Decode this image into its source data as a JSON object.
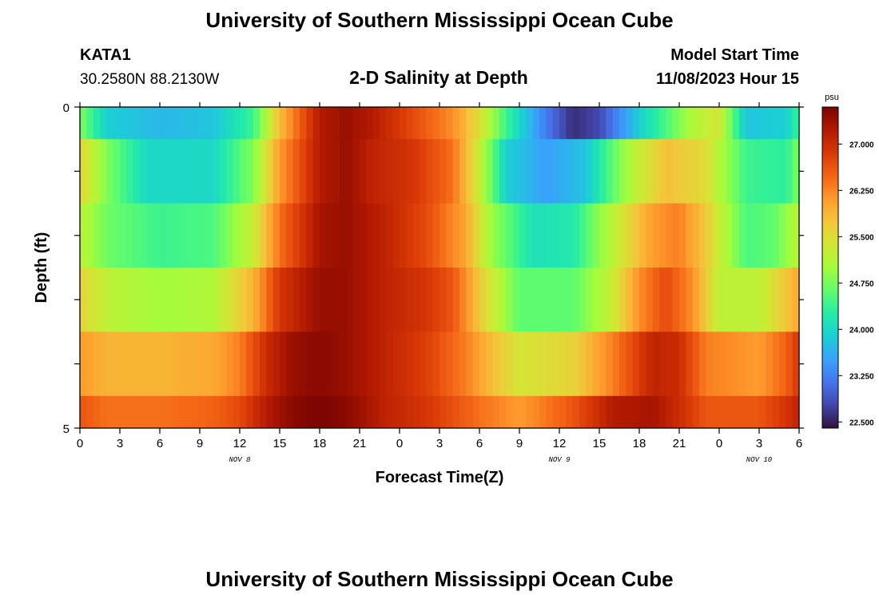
{
  "title": "University of Southern Mississippi Ocean Cube",
  "station": "KATA1",
  "coords": "30.2580N  88.2130W",
  "subtitle": "2-D Salinity at Depth",
  "model_start_label": "Model Start Time",
  "model_start_value": "11/08/2023 Hour 15",
  "footer_title": "University of Southern Mississippi Ocean Cube",
  "chart_data": {
    "type": "heatmap",
    "title": "2-D Salinity at Depth",
    "xlabel": "Forecast Time(Z)",
    "ylabel": "Depth (ft)",
    "x_range": [
      0,
      54
    ],
    "y_range": [
      0,
      5
    ],
    "x_tick_labels": [
      "0",
      "3",
      "6",
      "9",
      "12",
      "15",
      "18",
      "21",
      "0",
      "3",
      "6",
      "9",
      "12",
      "15",
      "18",
      "21",
      "0",
      "3",
      "6"
    ],
    "y_tick_labels": [
      "0",
      "5"
    ],
    "date_labels": [
      {
        "text": "NOV 8",
        "hour": 12
      },
      {
        "text": "NOV 9",
        "hour": 36
      },
      {
        "text": "NOV 10",
        "hour": 51
      }
    ],
    "colorbar": {
      "unit": "psu",
      "min": 22.4,
      "max": 27.6,
      "tick_values": [
        22.5,
        23.25,
        24.0,
        24.75,
        25.5,
        26.25,
        27.0
      ],
      "tick_labels": [
        "22.500",
        "23.250",
        "24.000",
        "24.750",
        "25.500",
        "26.250",
        "27.000"
      ],
      "colors": [
        "#30123b",
        "#4145ab",
        "#4675ed",
        "#39a2fc",
        "#1bcfd4",
        "#24eca6",
        "#61fc6c",
        "#a4fc3b",
        "#d1e834",
        "#f3c63a",
        "#fe9b2d",
        "#f36315",
        "#d93806",
        "#b11901",
        "#7a0402"
      ]
    },
    "depth_layers": [
      {
        "depth_range": [
          0,
          0.5
        ],
        "knots": [
          [
            0,
            24.8
          ],
          [
            2,
            23.9
          ],
          [
            6,
            23.7
          ],
          [
            10,
            23.8
          ],
          [
            13,
            24.4
          ],
          [
            15,
            25.8
          ],
          [
            16,
            26.3
          ],
          [
            18,
            27.2
          ],
          [
            20,
            27.4
          ],
          [
            22,
            27.2
          ],
          [
            25,
            26.7
          ],
          [
            28,
            26.2
          ],
          [
            30,
            25.5
          ],
          [
            32,
            24.4
          ],
          [
            35,
            23.2
          ],
          [
            37,
            22.6
          ],
          [
            39,
            22.8
          ],
          [
            42,
            23.9
          ],
          [
            44,
            24.5
          ],
          [
            46,
            25.1
          ],
          [
            48,
            25.4
          ],
          [
            50,
            23.8
          ],
          [
            53,
            23.9
          ],
          [
            54,
            24.4
          ]
        ]
      },
      {
        "depth_range": [
          0.5,
          1.5
        ],
        "knots": [
          [
            0,
            25.6
          ],
          [
            2,
            24.8
          ],
          [
            5,
            24.0
          ],
          [
            10,
            24.0
          ],
          [
            13,
            24.8
          ],
          [
            15,
            26.1
          ],
          [
            18,
            27.2
          ],
          [
            20,
            27.4
          ],
          [
            22,
            27.1
          ],
          [
            25,
            26.9
          ],
          [
            28,
            26.4
          ],
          [
            30,
            25.3
          ],
          [
            32,
            23.9
          ],
          [
            35,
            23.5
          ],
          [
            38,
            23.8
          ],
          [
            41,
            25.0
          ],
          [
            44,
            25.8
          ],
          [
            47,
            25.5
          ],
          [
            50,
            24.4
          ],
          [
            53,
            24.3
          ],
          [
            54,
            24.8
          ]
        ]
      },
      {
        "depth_range": [
          1.5,
          2.5
        ],
        "knots": [
          [
            0,
            25.2
          ],
          [
            2,
            24.7
          ],
          [
            6,
            24.4
          ],
          [
            10,
            24.5
          ],
          [
            13,
            25.3
          ],
          [
            15,
            26.4
          ],
          [
            18,
            27.3
          ],
          [
            20,
            27.4
          ],
          [
            23,
            27.1
          ],
          [
            26,
            26.7
          ],
          [
            29,
            26.0
          ],
          [
            31,
            24.9
          ],
          [
            34,
            24.1
          ],
          [
            37,
            24.2
          ],
          [
            40,
            25.2
          ],
          [
            43,
            26.1
          ],
          [
            45,
            26.3
          ],
          [
            47,
            25.7
          ],
          [
            50,
            24.5
          ],
          [
            52,
            24.6
          ],
          [
            54,
            25.2
          ]
        ]
      },
      {
        "depth_range": [
          2.5,
          3.5
        ],
        "knots": [
          [
            0,
            25.6
          ],
          [
            2,
            25.2
          ],
          [
            6,
            25.0
          ],
          [
            10,
            25.1
          ],
          [
            13,
            25.9
          ],
          [
            15,
            26.9
          ],
          [
            18,
            27.4
          ],
          [
            20,
            27.4
          ],
          [
            23,
            27.1
          ],
          [
            26,
            26.9
          ],
          [
            28,
            26.6
          ],
          [
            31,
            25.3
          ],
          [
            33,
            24.6
          ],
          [
            37,
            24.6
          ],
          [
            40,
            25.3
          ],
          [
            42,
            26.2
          ],
          [
            44,
            26.7
          ],
          [
            46,
            26.2
          ],
          [
            48,
            25.2
          ],
          [
            51,
            25.2
          ],
          [
            54,
            26.0
          ]
        ]
      },
      {
        "depth_range": [
          3.5,
          4.5
        ],
        "knots": [
          [
            0,
            26.1
          ],
          [
            2,
            25.9
          ],
          [
            6,
            25.9
          ],
          [
            10,
            26.0
          ],
          [
            12,
            26.3
          ],
          [
            14,
            27.0
          ],
          [
            16,
            27.4
          ],
          [
            18,
            27.5
          ],
          [
            20,
            27.4
          ],
          [
            23,
            27.1
          ],
          [
            26,
            26.8
          ],
          [
            29,
            26.3
          ],
          [
            31,
            25.8
          ],
          [
            33,
            25.4
          ],
          [
            37,
            25.6
          ],
          [
            40,
            26.3
          ],
          [
            43,
            27.1
          ],
          [
            45,
            27.0
          ],
          [
            47,
            26.3
          ],
          [
            51,
            26.1
          ],
          [
            53,
            26.5
          ],
          [
            54,
            26.9
          ]
        ]
      },
      {
        "depth_range": [
          4.5,
          5
        ],
        "knots": [
          [
            0,
            26.6
          ],
          [
            2,
            26.4
          ],
          [
            6,
            26.4
          ],
          [
            10,
            26.5
          ],
          [
            12,
            26.7
          ],
          [
            14,
            27.2
          ],
          [
            16,
            27.5
          ],
          [
            18,
            27.6
          ],
          [
            20,
            27.5
          ],
          [
            23,
            27.1
          ],
          [
            26,
            26.9
          ],
          [
            30,
            26.4
          ],
          [
            33,
            26.1
          ],
          [
            37,
            26.6
          ],
          [
            40,
            27.2
          ],
          [
            43,
            27.3
          ],
          [
            45,
            27.0
          ],
          [
            47,
            26.6
          ],
          [
            51,
            26.6
          ],
          [
            53,
            26.9
          ],
          [
            54,
            27.1
          ]
        ]
      }
    ]
  }
}
